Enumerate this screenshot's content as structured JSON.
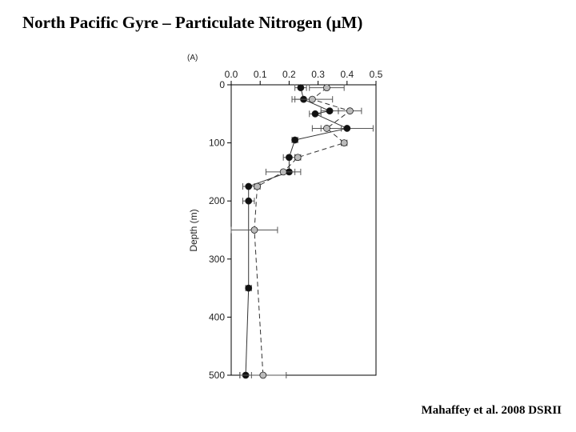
{
  "slide": {
    "title": "North Pacific Gyre – Particulate Nitrogen (µM)",
    "citation": "Mahaffey et al. 2008 DSRII"
  },
  "chart_data": {
    "type": "scatter",
    "panel_label": "(A)",
    "title": "",
    "xlabel": "",
    "ylabel": "Depth (m)",
    "xlim": [
      0,
      0.5
    ],
    "ylim": [
      0,
      500
    ],
    "y_inverted": true,
    "x_axis_position": "top",
    "x_ticks": [
      "0.0",
      "0.1",
      "0.2",
      "0.3",
      "0.4",
      "0.5"
    ],
    "y_ticks": [
      "0",
      "100",
      "200",
      "300",
      "400",
      "500"
    ],
    "grid": false,
    "legend": "none",
    "series": [
      {
        "marker_color": "#111111",
        "line_style": "solid",
        "points": [
          {
            "x": 0.24,
            "y": 5,
            "err": 0.02
          },
          {
            "x": 0.25,
            "y": 25,
            "err": 0.03
          },
          {
            "x": 0.34,
            "y": 45,
            "err": 0.03
          },
          {
            "x": 0.29,
            "y": 50,
            "err": 0.02
          },
          {
            "x": 0.4,
            "y": 75,
            "err": 0.09
          },
          {
            "x": 0.22,
            "y": 95,
            "err": 0.01
          },
          {
            "x": 0.2,
            "y": 125,
            "err": 0.02
          },
          {
            "x": 0.2,
            "y": 150,
            "err": 0.02
          },
          {
            "x": 0.06,
            "y": 175,
            "err": 0.02
          },
          {
            "x": 0.06,
            "y": 200,
            "err": 0.02
          },
          {
            "x": 0.06,
            "y": 350,
            "err": 0.01
          },
          {
            "x": 0.05,
            "y": 500,
            "err": 0.02
          }
        ]
      },
      {
        "marker_color": "#bbbbbb",
        "line_style": "dashed",
        "points": [
          {
            "x": 0.33,
            "y": 5,
            "err": 0.06
          },
          {
            "x": 0.28,
            "y": 25,
            "err": 0.07
          },
          {
            "x": 0.41,
            "y": 45,
            "err": 0.04
          },
          {
            "x": 0.33,
            "y": 75,
            "err": 0.05
          },
          {
            "x": 0.39,
            "y": 100,
            "err": 0.01
          },
          {
            "x": 0.23,
            "y": 125,
            "err": 0.01
          },
          {
            "x": 0.18,
            "y": 150,
            "err": 0.06
          },
          {
            "x": 0.09,
            "y": 175,
            "err": 0.01
          },
          {
            "x": 0.08,
            "y": 250,
            "err": 0.08
          },
          {
            "x": 0.11,
            "y": 500,
            "err": 0.08
          }
        ]
      }
    ]
  }
}
